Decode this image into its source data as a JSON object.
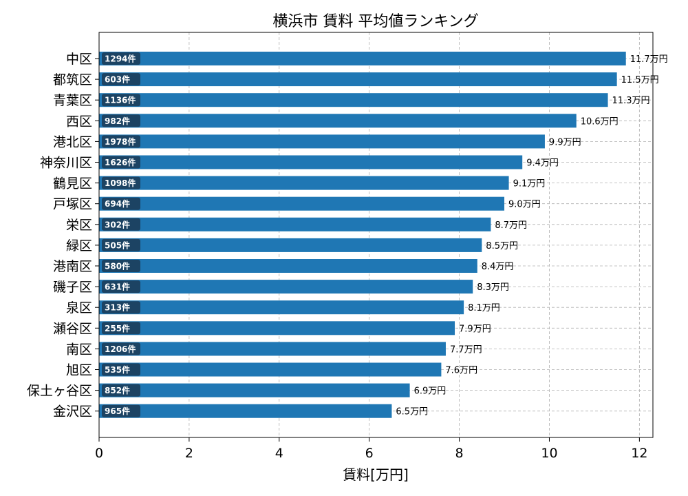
{
  "chart_data": {
    "type": "bar",
    "orientation": "horizontal",
    "title": "横浜市 賃料 平均値ランキング",
    "xlabel": "賃料[万円]",
    "ylabel": "",
    "xlim": [
      0,
      12.3
    ],
    "xticks": [
      0,
      2,
      4,
      6,
      8,
      10,
      12
    ],
    "grid": true,
    "colors": {
      "bar": "#1f77b4",
      "count_box": "#1c3a55",
      "grid": "#b0b0b0"
    },
    "categories": [
      "中区",
      "都筑区",
      "青葉区",
      "西区",
      "港北区",
      "神奈川区",
      "鶴見区",
      "戸塚区",
      "栄区",
      "緑区",
      "港南区",
      "磯子区",
      "泉区",
      "瀬谷区",
      "南区",
      "旭区",
      "保土ヶ谷区",
      "金沢区"
    ],
    "values": [
      11.7,
      11.5,
      11.3,
      10.6,
      9.9,
      9.4,
      9.1,
      9.0,
      8.7,
      8.5,
      8.4,
      8.3,
      8.1,
      7.9,
      7.7,
      7.6,
      6.9,
      6.5
    ],
    "value_labels": [
      "11.7万円",
      "11.5万円",
      "11.3万円",
      "10.6万円",
      "9.9万円",
      "9.4万円",
      "9.1万円",
      "9.0万円",
      "8.7万円",
      "8.5万円",
      "8.4万円",
      "8.3万円",
      "8.1万円",
      "7.9万円",
      "7.7万円",
      "7.6万円",
      "6.9万円",
      "6.5万円"
    ],
    "count_labels": [
      "1294件",
      "603件",
      "1136件",
      "982件",
      "1978件",
      "1626件",
      "1098件",
      "694件",
      "302件",
      "505件",
      "580件",
      "631件",
      "313件",
      "255件",
      "1206件",
      "535件",
      "852件",
      "965件"
    ]
  }
}
